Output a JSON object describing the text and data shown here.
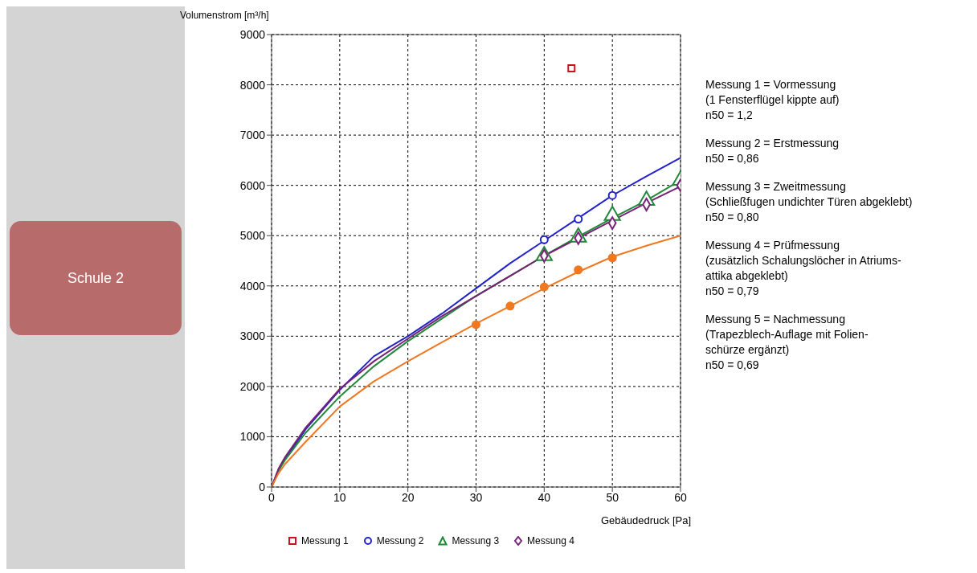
{
  "chart_data": {
    "type": "line",
    "title": "Schule 2",
    "xlabel": "Gebäudedruck [Pa]",
    "ylabel": "Volumenstrom [m³/h]",
    "xlim": [
      0,
      60
    ],
    "xticks": [
      0,
      10,
      20,
      30,
      40,
      50,
      60
    ],
    "ylim": [
      0,
      9000
    ],
    "yticks": [
      0,
      1000,
      2000,
      3000,
      4000,
      5000,
      6000,
      7000,
      8000,
      9000
    ],
    "grid": true,
    "legend": "bottom",
    "line_style": "solid",
    "series": [
      {
        "color": "#2222cc",
        "x": [
          0,
          1,
          2,
          5,
          10,
          15,
          20,
          25,
          30,
          35,
          40,
          45,
          50,
          55,
          60
        ],
        "values": [
          0,
          330,
          560,
          1150,
          1930,
          2600,
          3000,
          3450,
          3950,
          4450,
          4900,
          5350,
          5800,
          6180,
          6550
        ]
      },
      {
        "color": "#22883a",
        "x": [
          0,
          1,
          2,
          5,
          10,
          15,
          20,
          25,
          30,
          35,
          40,
          45,
          50,
          55,
          59
        ],
        "values": [
          0,
          320,
          540,
          1080,
          1800,
          2400,
          2900,
          3350,
          3800,
          4200,
          4600,
          4980,
          5350,
          5700,
          6020
        ]
      },
      {
        "color": "#772277",
        "x": [
          0,
          1,
          2,
          5,
          10,
          15,
          20,
          25,
          30,
          35,
          40,
          45,
          50,
          55,
          60
        ],
        "values": [
          0,
          360,
          600,
          1180,
          1950,
          2500,
          2950,
          3400,
          3800,
          4200,
          4600,
          4950,
          5300,
          5650,
          5980
        ]
      },
      {
        "color": "#f07820",
        "x": [
          0,
          1,
          2,
          5,
          10,
          15,
          20,
          25,
          30,
          35,
          40,
          45,
          50,
          55,
          60
        ],
        "values": [
          0,
          270,
          460,
          900,
          1600,
          2100,
          2500,
          2880,
          3250,
          3600,
          3950,
          4280,
          4580,
          4800,
          5000
        ]
      },
      {
        "type": "scatter",
        "name": "Messung 1",
        "color": "#cc1122",
        "marker": "square",
        "x": [
          44
        ],
        "values": [
          8330
        ]
      },
      {
        "type": "scatter",
        "name": "Messung 2",
        "color": "#2222cc",
        "marker": "circle",
        "x": [
          40,
          45,
          50
        ],
        "values": [
          4920,
          5330,
          5800
        ]
      },
      {
        "type": "scatter",
        "name": "Messung 3",
        "color": "#22883a",
        "marker": "triangle",
        "x": [
          40,
          45,
          50,
          55,
          60
        ],
        "values": [
          4600,
          4970,
          5400,
          5700,
          6100
        ]
      },
      {
        "type": "scatter",
        "name": "Messung 4",
        "color": "#772277",
        "marker": "diamond",
        "x": [
          40,
          45,
          50,
          55,
          60
        ],
        "values": [
          4600,
          4950,
          5250,
          5620,
          6000
        ]
      },
      {
        "type": "scatter",
        "color": "#f07820",
        "marker": "circle",
        "x": [
          30,
          35,
          40,
          45,
          50
        ],
        "values": [
          3230,
          3600,
          3980,
          4320,
          4560
        ]
      }
    ],
    "annotations": [
      "Messung 1 = Vormessung\n(1 Fensterflügel kippte auf)\nn50 = 1,2",
      "Messung 2 = Erstmessung\nn50 = 0,86",
      "Messung 3 = Zweitmessung\n(Schließfugen undichter Türen abgeklebt)\nn50 = 0,80",
      "Messung 4 = Prüfmessung\n(zusätzlich Schalungslöcher in Atriums-\nattika abgeklebt)\nn50 = 0,79",
      "Messung 5 = Nachmessung\n(Trapezblech-Auflage mit Folien-\nschürze ergänzt)\nn50 = 0,69"
    ]
  }
}
